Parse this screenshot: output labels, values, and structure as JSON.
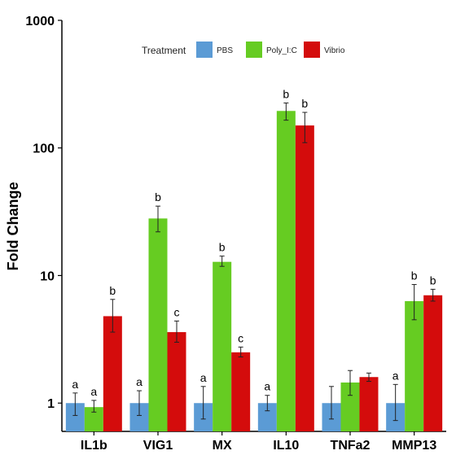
{
  "chart_data": {
    "type": "bar",
    "title": "",
    "xlabel": "",
    "ylabel": "Fold Change",
    "y_scale": "log10",
    "ylim": [
      0.6,
      1000
    ],
    "y_ticks": [
      1,
      10,
      100,
      1000
    ],
    "y_tick_labels": [
      "1",
      "10",
      "100",
      "1000"
    ],
    "grid": false,
    "legend": {
      "title": "Treatment",
      "position": "top-center"
    },
    "categories": [
      "IL1b",
      "VIG1",
      "MX",
      "IL10",
      "TNFa2",
      "MMP13"
    ],
    "series": [
      {
        "name": "PBS",
        "color": "#5b9bd5",
        "values": [
          1.0,
          1.0,
          1.0,
          1.0,
          1.0,
          1.0
        ],
        "err_low": [
          0.8,
          0.8,
          0.75,
          0.87,
          0.75,
          0.73
        ],
        "err_high": [
          1.2,
          1.25,
          1.35,
          1.15,
          1.35,
          1.4
        ],
        "sig_labels": [
          "a",
          "a",
          "a",
          "a",
          "",
          "a"
        ]
      },
      {
        "name": "Poly_I:C",
        "color": "#66cc22",
        "values": [
          0.93,
          28,
          12.8,
          195,
          1.45,
          6.3
        ],
        "err_low": [
          0.85,
          22,
          11.8,
          165,
          1.15,
          4.5
        ],
        "err_high": [
          1.05,
          35,
          14.2,
          225,
          1.8,
          8.5
        ],
        "sig_labels": [
          "a",
          "b",
          "b",
          "b",
          "",
          "b"
        ]
      },
      {
        "name": "Vibrio",
        "color": "#d40c0c",
        "values": [
          4.8,
          3.6,
          2.5,
          150,
          1.6,
          7.0
        ],
        "err_low": [
          3.6,
          3.0,
          2.3,
          110,
          1.48,
          6.3
        ],
        "err_high": [
          6.5,
          4.4,
          2.75,
          190,
          1.72,
          7.8
        ],
        "sig_labels": [
          "b",
          "c",
          "c",
          "b",
          "",
          "b"
        ]
      }
    ]
  }
}
